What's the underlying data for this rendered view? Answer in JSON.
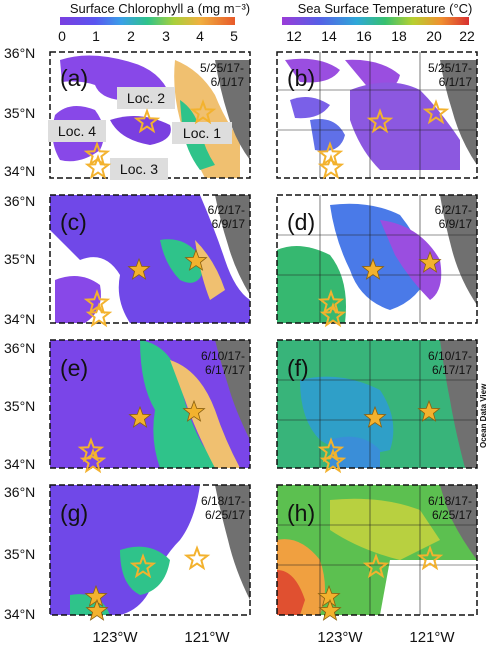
{
  "chl_colorbar": {
    "title": "Surface Chlorophyll a (mg m⁻³)",
    "ticks": [
      "0",
      "1",
      "2",
      "3",
      "4",
      "5"
    ]
  },
  "sst_colorbar": {
    "title": "Sea Surface Temperature (°C)",
    "ticks": [
      "12",
      "14",
      "16",
      "18",
      "20",
      "22"
    ]
  },
  "lat_labels": [
    "36°N",
    "35°N",
    "34°N"
  ],
  "lon_labels": [
    "123°W",
    "121°W"
  ],
  "watermark": "Ocean Data View",
  "location_labels": [
    "Loc. 1",
    "Loc. 2",
    "Loc. 3",
    "Loc. 4"
  ],
  "panels": [
    {
      "letter": "(a)",
      "dates": [
        "5/25/17-",
        "6/1/17"
      ]
    },
    {
      "letter": "(b)",
      "dates": [
        "5/25/17-",
        "6/1/17"
      ]
    },
    {
      "letter": "(c)",
      "dates": [
        "6/2/17-",
        "6/9/17"
      ]
    },
    {
      "letter": "(d)",
      "dates": [
        "6/2/17-",
        "6/9/17"
      ]
    },
    {
      "letter": "(e)",
      "dates": [
        "6/10/17-",
        "6/17/17"
      ]
    },
    {
      "letter": "(f)",
      "dates": [
        "6/10/17-",
        "6/17/17"
      ]
    },
    {
      "letter": "(g)",
      "dates": [
        "6/18/17-",
        "6/25/17"
      ]
    },
    {
      "letter": "(h)",
      "dates": [
        "6/18/17-",
        "6/25/17"
      ]
    }
  ]
}
